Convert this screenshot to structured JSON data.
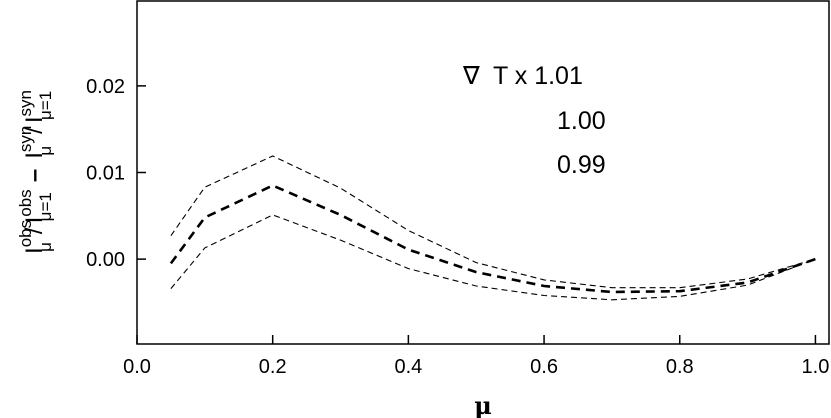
{
  "chart_data": {
    "type": "line",
    "title": "",
    "xlabel": "μ",
    "ylabel_parts": {
      "I": "I",
      "obs": "obs",
      "mu": "μ",
      "slash": "/",
      "mu1": "μ=1",
      "minus": "–",
      "syn": "syn"
    },
    "xlim": [
      0.0,
      1.02
    ],
    "ylim": [
      -0.0098,
      0.0298
    ],
    "xticks": [
      0.0,
      0.2,
      0.4,
      0.6,
      0.8,
      1.0
    ],
    "xtick_labels": [
      "0.0",
      "0.2",
      "0.4",
      "0.6",
      "0.8",
      "1.0"
    ],
    "yticks": [
      0.0,
      0.01,
      0.02
    ],
    "ytick_labels": [
      "0.00",
      "0.01",
      "0.02"
    ],
    "grid": false,
    "annotation": {
      "symbol": "∇",
      "text": "T x 1.01",
      "line2": "1.00",
      "line3": "0.99"
    },
    "series": [
      {
        "label": "1.01",
        "style": "thin-dashed",
        "x": [
          0.05,
          0.1,
          0.2,
          0.3,
          0.4,
          0.5,
          0.6,
          0.7,
          0.8,
          0.9,
          1.0
        ],
        "y": [
          0.0027,
          0.0083,
          0.0119,
          0.0082,
          0.0033,
          -0.0004,
          -0.0024,
          -0.0033,
          -0.0033,
          -0.0023,
          0.0
        ]
      },
      {
        "label": "1.00",
        "style": "thick-dashed",
        "x": [
          0.05,
          0.1,
          0.2,
          0.3,
          0.4,
          0.5,
          0.6,
          0.7,
          0.8,
          0.9,
          1.0
        ],
        "y": [
          -0.0005,
          0.0048,
          0.0085,
          0.0051,
          0.0011,
          -0.0015,
          -0.0031,
          -0.0038,
          -0.0037,
          -0.0027,
          0.0
        ]
      },
      {
        "label": "0.99",
        "style": "thin-dashed",
        "x": [
          0.05,
          0.1,
          0.2,
          0.3,
          0.4,
          0.5,
          0.6,
          0.7,
          0.8,
          0.9,
          1.0
        ],
        "y": [
          -0.0034,
          0.0013,
          0.0051,
          0.0022,
          -0.0011,
          -0.0031,
          -0.0042,
          -0.0047,
          -0.0043,
          -0.003,
          0.0
        ]
      }
    ]
  }
}
